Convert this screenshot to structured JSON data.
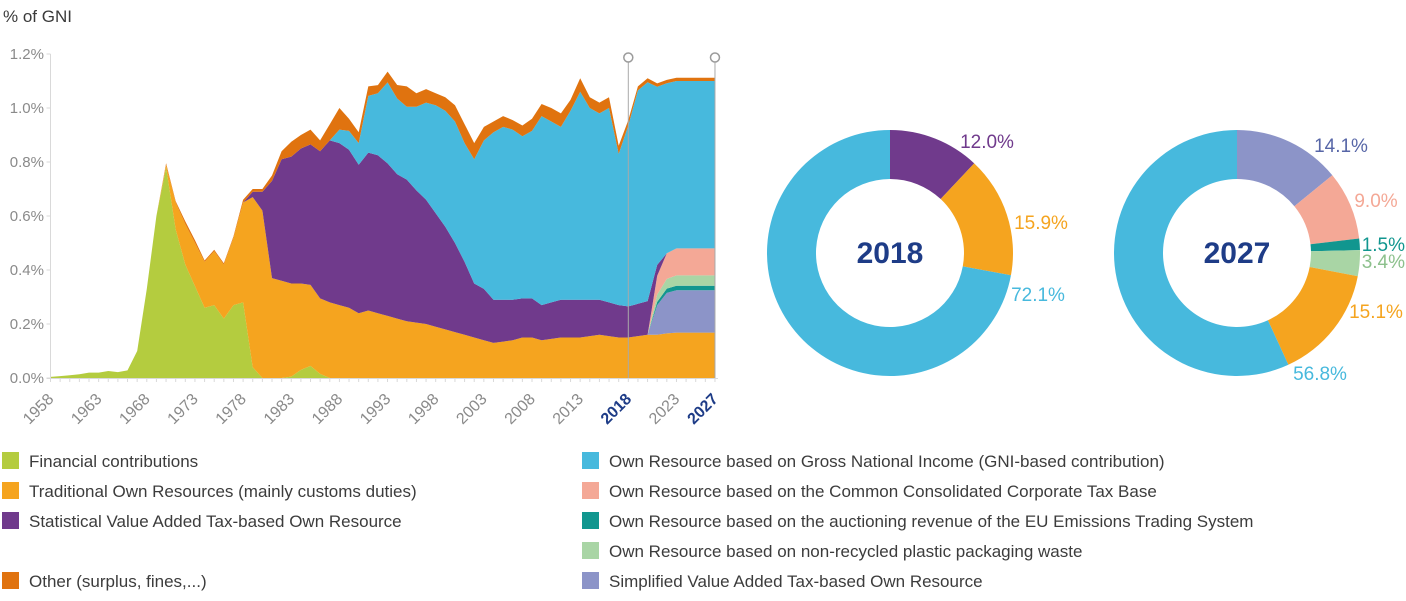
{
  "colors": {
    "financial": "#b4cc3f",
    "tor": "#f5a41f",
    "stat_vat": "#703a8c",
    "other": "#e0730f",
    "gni": "#47b9dd",
    "cctb": "#f4a896",
    "ets": "#11968f",
    "plastic": "#a9d5a5",
    "simpl_vat": "#8c94c8",
    "navy": "#1e3c87",
    "axis_text": "#8a8a8a",
    "axis_line": "#d9d9d9",
    "marker_line": "#a9a9a9",
    "label_14_1": "#5766a7",
    "label_3_4": "#8cc08c",
    "legend_text": "#3c3c3c"
  },
  "chart_data": [
    {
      "type": "area",
      "title": "% of GNI",
      "x_start": 1958,
      "x_end": 2027,
      "ylim": [
        0,
        1.2
      ],
      "y_tick_labels": [
        "0.0%",
        "0.2%",
        "0.4%",
        "0.6%",
        "0.8%",
        "1.0%",
        "1.2%"
      ],
      "x_tick_labels": [
        "1958",
        "1963",
        "1968",
        "1973",
        "1978",
        "1983",
        "1988",
        "1993",
        "1998",
        "2003",
        "2008",
        "2013",
        "2018",
        "2023",
        "2027"
      ],
      "highlighted_ticks": [
        "2018",
        "2027"
      ],
      "marker_years": [
        2018,
        2027
      ],
      "grid": false,
      "series": [
        {
          "name": "Financial contributions",
          "color": "financial",
          "values": [
            0.004,
            0.007,
            0.01,
            0.014,
            0.02,
            0.02,
            0.026,
            0.022,
            0.028,
            0.1,
            0.33,
            0.6,
            0.78,
            0.55,
            0.42,
            0.34,
            0.26,
            0.27,
            0.22,
            0.27,
            0.28,
            0.04,
            0,
            0,
            0,
            0.005,
            0.03,
            0.045,
            0.015,
            0,
            0,
            0,
            0,
            0,
            0,
            0,
            0,
            0,
            0,
            0,
            0,
            0,
            0,
            0,
            0,
            0,
            0,
            0,
            0,
            0,
            0,
            0,
            0,
            0,
            0,
            0,
            0,
            0,
            0,
            0,
            0,
            0,
            0,
            0,
            0,
            0,
            0,
            0,
            0,
            0
          ]
        },
        {
          "name": "Traditional Own Resources (mainly customs duties)",
          "color": "tor",
          "values": [
            0,
            0,
            0,
            0,
            0,
            0,
            0,
            0,
            0,
            0,
            0,
            0,
            0.01,
            0.1,
            0.15,
            0.16,
            0.17,
            0.2,
            0.2,
            0.25,
            0.37,
            0.63,
            0.62,
            0.37,
            0.36,
            0.345,
            0.32,
            0.3,
            0.28,
            0.28,
            0.27,
            0.26,
            0.24,
            0.25,
            0.24,
            0.23,
            0.22,
            0.21,
            0.205,
            0.2,
            0.19,
            0.18,
            0.17,
            0.16,
            0.15,
            0.14,
            0.13,
            0.135,
            0.14,
            0.15,
            0.15,
            0.14,
            0.145,
            0.15,
            0.15,
            0.15,
            0.155,
            0.16,
            0.155,
            0.15,
            0.15,
            0.155,
            0.16,
            0.16,
            0.165,
            0.168,
            0.168,
            0.168,
            0.168,
            0.168
          ]
        },
        {
          "name": "Simplified Value Added Tax-based Own Resource",
          "color": "simpl_vat",
          "values": [
            0,
            0,
            0,
            0,
            0,
            0,
            0,
            0,
            0,
            0,
            0,
            0,
            0,
            0,
            0,
            0,
            0,
            0,
            0,
            0,
            0,
            0,
            0,
            0,
            0,
            0,
            0,
            0,
            0,
            0,
            0,
            0,
            0,
            0,
            0,
            0,
            0,
            0,
            0,
            0,
            0,
            0,
            0,
            0,
            0,
            0,
            0,
            0,
            0,
            0,
            0,
            0,
            0,
            0,
            0,
            0,
            0,
            0,
            0,
            0,
            0,
            0,
            0,
            0.11,
            0.15,
            0.157,
            0.157,
            0.157,
            0.157,
            0.157
          ]
        },
        {
          "name": "Own Resource based on the auctioning revenue of the EU Emissions Trading System",
          "color": "ets",
          "values": [
            0,
            0,
            0,
            0,
            0,
            0,
            0,
            0,
            0,
            0,
            0,
            0,
            0,
            0,
            0,
            0,
            0,
            0,
            0,
            0,
            0,
            0,
            0,
            0,
            0,
            0,
            0,
            0,
            0,
            0,
            0,
            0,
            0,
            0,
            0,
            0,
            0,
            0,
            0,
            0,
            0,
            0,
            0,
            0,
            0,
            0,
            0,
            0,
            0,
            0,
            0,
            0,
            0,
            0,
            0,
            0,
            0,
            0,
            0,
            0,
            0,
            0,
            0,
            0.012,
            0.016,
            0.017,
            0.017,
            0.017,
            0.017,
            0.017
          ]
        },
        {
          "name": "Own Resource based on non-recycled plastic packaging waste",
          "color": "plastic",
          "values": [
            0,
            0,
            0,
            0,
            0,
            0,
            0,
            0,
            0,
            0,
            0,
            0,
            0,
            0,
            0,
            0,
            0,
            0,
            0,
            0,
            0,
            0,
            0,
            0,
            0,
            0,
            0,
            0,
            0,
            0,
            0,
            0,
            0,
            0,
            0,
            0,
            0,
            0,
            0,
            0,
            0,
            0,
            0,
            0,
            0,
            0,
            0,
            0,
            0,
            0,
            0,
            0,
            0,
            0,
            0,
            0,
            0,
            0,
            0,
            0,
            0,
            0,
            0,
            0.027,
            0.036,
            0.038,
            0.038,
            0.038,
            0.038,
            0.038
          ]
        },
        {
          "name": "Own Resource based on the Common Consolidated Corporate Tax Base",
          "color": "cctb",
          "values": [
            0,
            0,
            0,
            0,
            0,
            0,
            0,
            0,
            0,
            0,
            0,
            0,
            0,
            0,
            0,
            0,
            0,
            0,
            0,
            0,
            0,
            0,
            0,
            0,
            0,
            0,
            0,
            0,
            0,
            0,
            0,
            0,
            0,
            0,
            0,
            0,
            0,
            0,
            0,
            0,
            0,
            0,
            0,
            0,
            0,
            0,
            0,
            0,
            0,
            0,
            0,
            0,
            0,
            0,
            0,
            0,
            0,
            0,
            0,
            0,
            0,
            0,
            0,
            0.07,
            0.095,
            0.1,
            0.1,
            0.1,
            0.1,
            0.1
          ]
        },
        {
          "name": "Statistical Value Added Tax-based Own Resource",
          "color": "stat_vat",
          "values": [
            0,
            0,
            0,
            0,
            0,
            0,
            0,
            0,
            0,
            0,
            0,
            0,
            0,
            0,
            0,
            0,
            0,
            0,
            0,
            0,
            0,
            0.02,
            0.07,
            0.36,
            0.45,
            0.47,
            0.5,
            0.52,
            0.545,
            0.6,
            0.6,
            0.585,
            0.55,
            0.585,
            0.585,
            0.565,
            0.535,
            0.525,
            0.49,
            0.46,
            0.42,
            0.38,
            0.33,
            0.27,
            0.2,
            0.19,
            0.16,
            0.155,
            0.15,
            0.145,
            0.145,
            0.13,
            0.135,
            0.14,
            0.14,
            0.14,
            0.135,
            0.13,
            0.125,
            0.12,
            0.115,
            0.12,
            0.125,
            0.04,
            0,
            0,
            0,
            0,
            0,
            0
          ]
        },
        {
          "name": "Own Resource based on Gross National Income (GNI-based contribution)",
          "color": "gni",
          "values": [
            0,
            0,
            0,
            0,
            0,
            0,
            0,
            0,
            0,
            0,
            0,
            0,
            0,
            0,
            0,
            0,
            0,
            0,
            0,
            0,
            0,
            0,
            0,
            0,
            0,
            0,
            0,
            0,
            0,
            0,
            0.05,
            0.07,
            0.08,
            0.21,
            0.23,
            0.3,
            0.28,
            0.27,
            0.31,
            0.36,
            0.4,
            0.43,
            0.45,
            0.44,
            0.46,
            0.55,
            0.62,
            0.64,
            0.63,
            0.6,
            0.62,
            0.7,
            0.67,
            0.64,
            0.7,
            0.77,
            0.71,
            0.69,
            0.72,
            0.56,
            0.67,
            0.79,
            0.81,
            0.66,
            0.63,
            0.62,
            0.62,
            0.62,
            0.62,
            0.62
          ]
        },
        {
          "name": "Other (surplus, fines,...)",
          "color": "other",
          "values": [
            0,
            0,
            0,
            0,
            0,
            0,
            0,
            0,
            0,
            0,
            0,
            0,
            0.005,
            0.005,
            0.01,
            0.01,
            0.005,
            0.005,
            0.005,
            0.005,
            0.01,
            0.01,
            0.01,
            0.02,
            0.03,
            0.055,
            0.05,
            0.055,
            0.04,
            0.06,
            0.08,
            0.045,
            0.04,
            0.035,
            0.03,
            0.04,
            0.05,
            0.075,
            0.05,
            0.05,
            0.045,
            0.05,
            0.06,
            0.07,
            0.06,
            0.05,
            0.04,
            0.04,
            0.035,
            0.04,
            0.045,
            0.045,
            0.05,
            0.05,
            0.04,
            0.05,
            0.04,
            0.04,
            0.04,
            0.03,
            0.02,
            0.015,
            0.015,
            0.012,
            0.012,
            0.012,
            0.012,
            0.012,
            0.012,
            0.012
          ]
        }
      ]
    },
    {
      "type": "donut",
      "center_label": "2018",
      "slices": [
        {
          "name": "Statistical Value Added Tax-based Own Resource",
          "color": "stat_vat",
          "value": 12.0,
          "label": "12.0%",
          "label_color": "stat_vat"
        },
        {
          "name": "Traditional Own Resources (mainly customs duties)",
          "color": "tor",
          "value": 15.9,
          "label": "15.9%",
          "label_color": "tor"
        },
        {
          "name": "Own Resource based on Gross National Income (GNI-based contribution)",
          "color": "gni",
          "value": 72.1,
          "label": "72.1%",
          "label_color": "gni"
        }
      ]
    },
    {
      "type": "donut",
      "center_label": "2027",
      "slices": [
        {
          "name": "Simplified Value Added Tax-based Own Resource",
          "color": "simpl_vat",
          "value": 14.1,
          "label": "14.1%",
          "label_color": "label_14_1"
        },
        {
          "name": "Own Resource based on the Common Consolidated Corporate Tax Base",
          "color": "cctb",
          "value": 9.0,
          "label": "9.0%",
          "label_color": "cctb"
        },
        {
          "name": "Own Resource based on the auctioning revenue of the EU Emissions Trading System",
          "color": "ets",
          "value": 1.5,
          "label": "1.5%",
          "label_color": "ets"
        },
        {
          "name": "Own Resource based on non-recycled plastic packaging waste",
          "color": "plastic",
          "value": 3.4,
          "label": "3.4%",
          "label_color": "label_3_4"
        },
        {
          "name": "Traditional Own Resources (mainly customs duties)",
          "color": "tor",
          "value": 15.1,
          "label": "15.1%",
          "label_color": "tor"
        },
        {
          "name": "Own Resource based on Gross National Income (GNI-based contribution)",
          "color": "gni",
          "value": 56.8,
          "label": "56.8%",
          "label_color": "gni"
        }
      ]
    }
  ],
  "legend": {
    "left": [
      {
        "color": "financial",
        "label": "Financial contributions",
        "row": 0
      },
      {
        "color": "tor",
        "label": "Traditional Own Resources (mainly customs duties)",
        "row": 1
      },
      {
        "color": "stat_vat",
        "label": "Statistical Value Added Tax-based Own Resource",
        "row": 2
      },
      {
        "color": "other",
        "label": "Other (surplus, fines,...)",
        "row": 4
      }
    ],
    "right": [
      {
        "color": "gni",
        "label": "Own Resource based on Gross National Income (GNI-based contribution)",
        "row": 0
      },
      {
        "color": "cctb",
        "label": "Own Resource based on the Common Consolidated Corporate Tax Base",
        "row": 1
      },
      {
        "color": "ets",
        "label": "Own Resource based on the auctioning revenue of the EU Emissions Trading System",
        "row": 2
      },
      {
        "color": "plastic",
        "label": "Own Resource based on non-recycled plastic packaging waste",
        "row": 3
      },
      {
        "color": "simpl_vat",
        "label": "Simplified Value Added Tax-based Own Resource",
        "row": 4
      }
    ]
  }
}
